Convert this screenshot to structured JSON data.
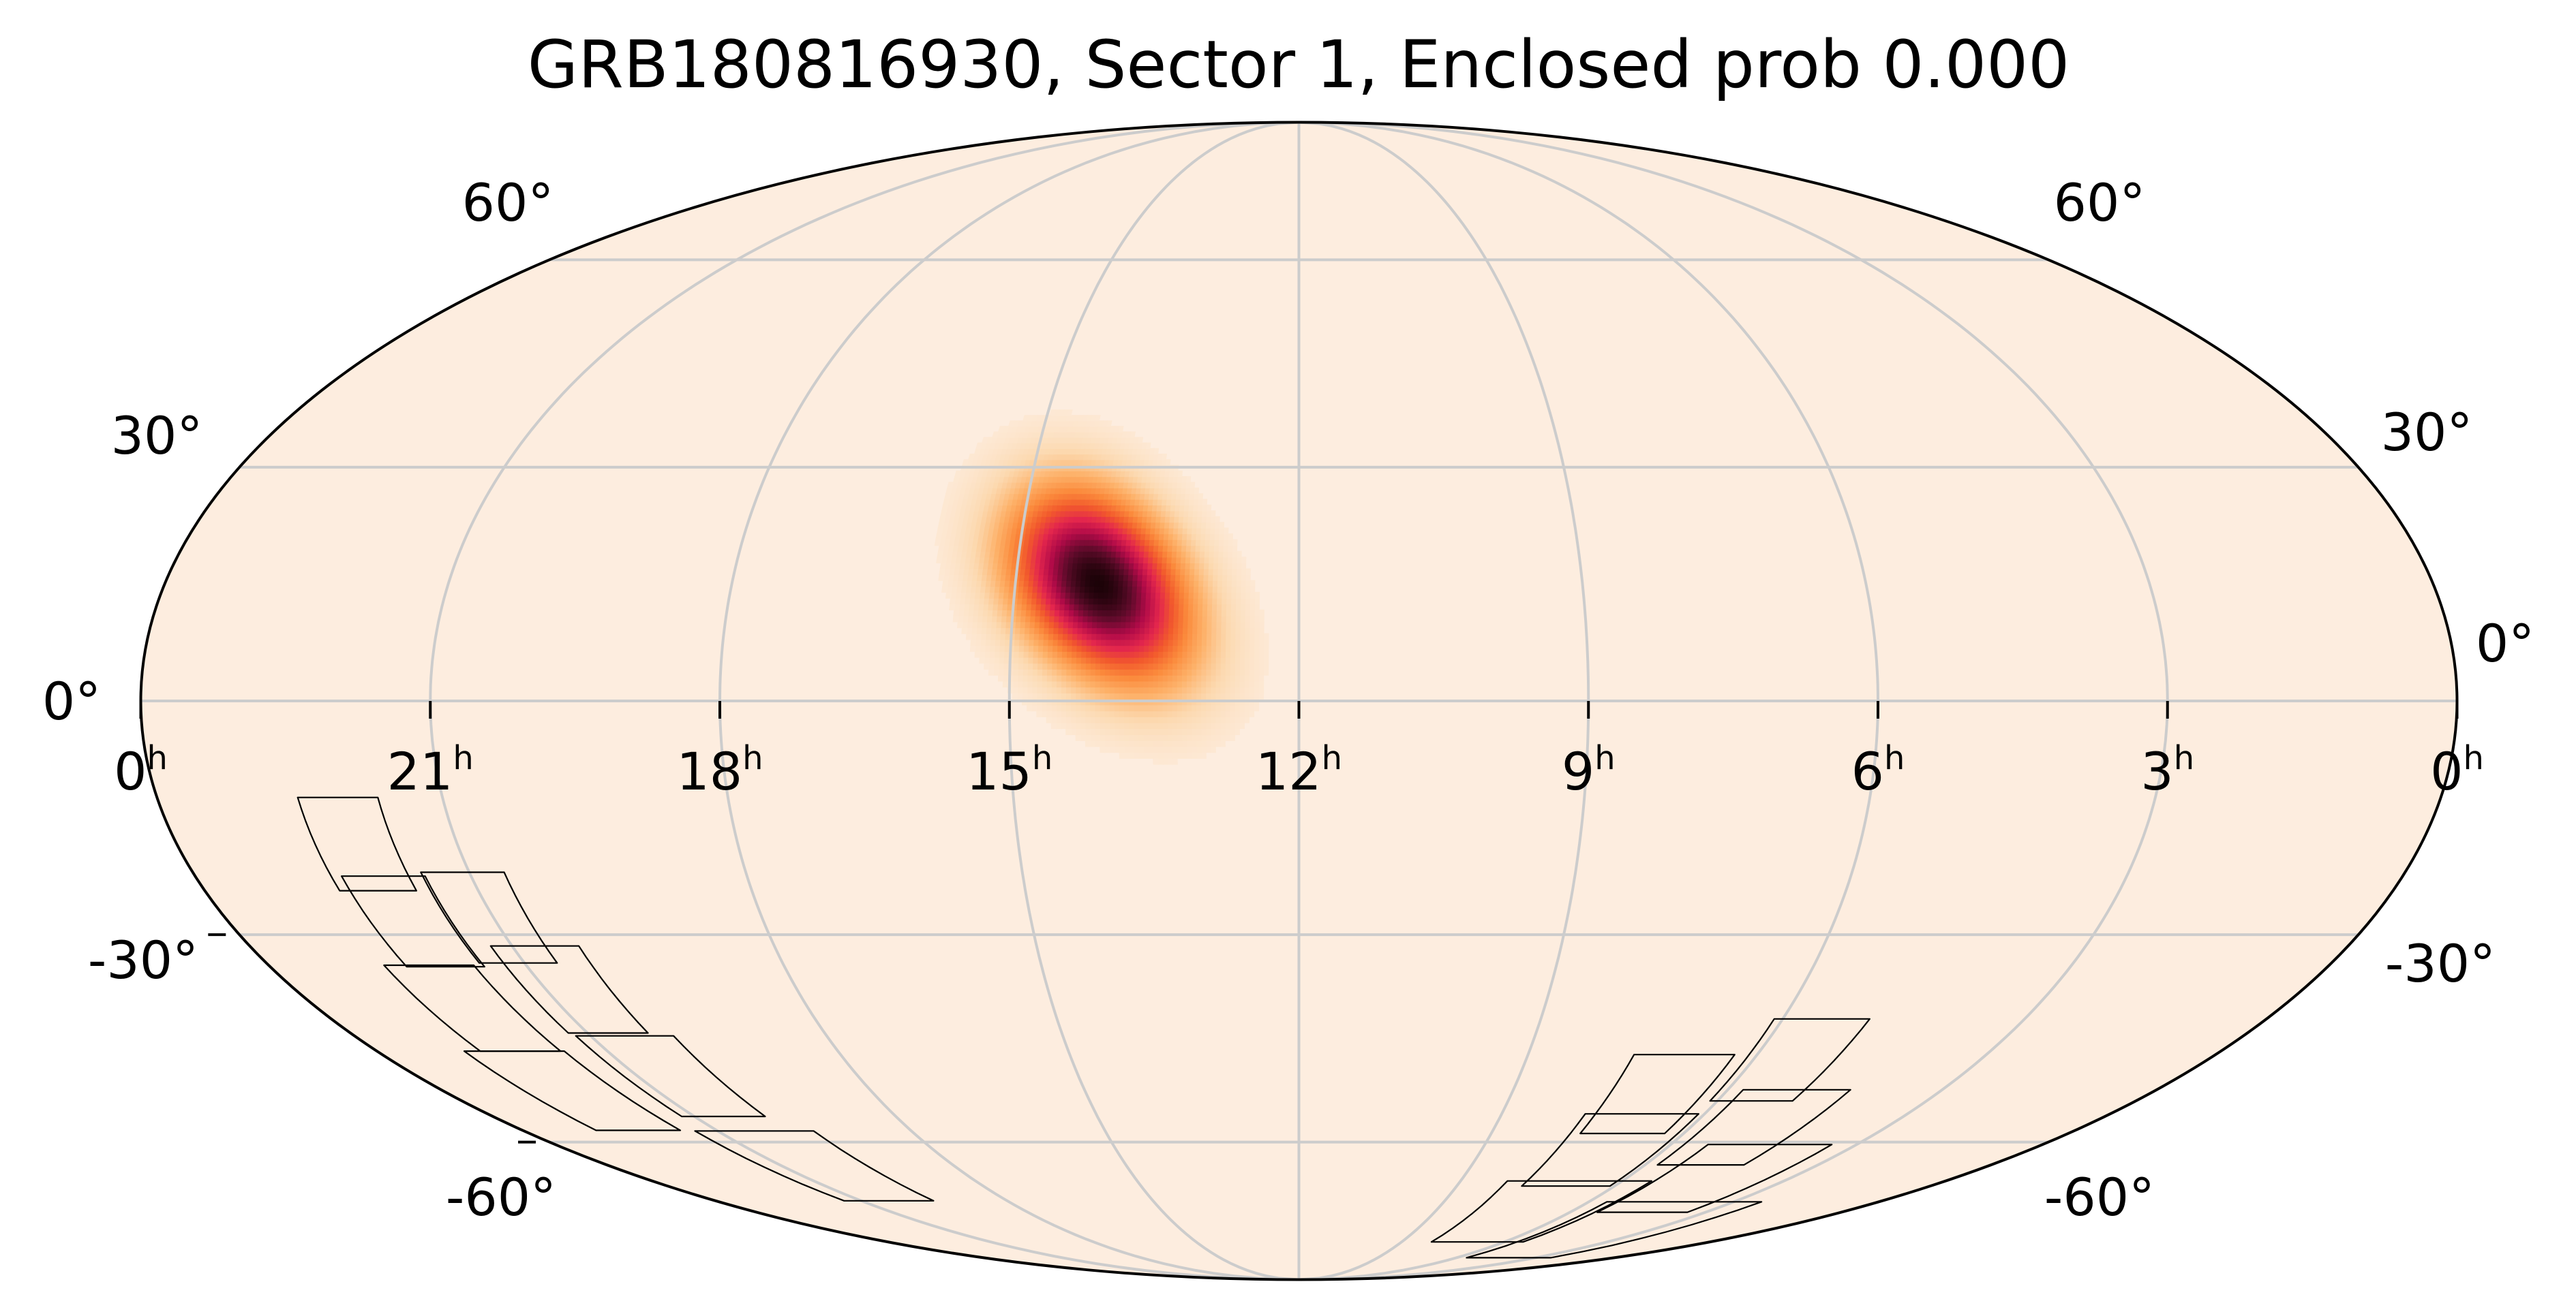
{
  "chart_data": {
    "type": "heatmap",
    "projection": "mollweide",
    "title": "GRB180816930, Sector 1, Enclosed prob 0.000",
    "colormap": "hot_r",
    "colors": {
      "background": "#fdeddf",
      "grid": "#cccccc",
      "outline": "#000000",
      "cmap_stops": [
        "#fdeddf",
        "#fcd9b0",
        "#fdb169",
        "#fb8a3c",
        "#f25a2c",
        "#e3264d",
        "#b10b48",
        "#5e0b2a",
        "#1c0308"
      ]
    },
    "ra_ticks": [
      {
        "h": "0",
        "s": "h",
        "ra": 360
      },
      {
        "h": "21",
        "s": "h",
        "ra": 315
      },
      {
        "h": "18",
        "s": "h",
        "ra": 270
      },
      {
        "h": "15",
        "s": "h",
        "ra": 225
      },
      {
        "h": "12",
        "s": "h",
        "ra": 180
      },
      {
        "h": "9",
        "s": "h",
        "ra": 135
      },
      {
        "h": "6",
        "s": "h",
        "ra": 90
      },
      {
        "h": "3",
        "s": "h",
        "ra": 45
      },
      {
        "h": "0",
        "s": "h",
        "ra": 0
      }
    ],
    "dec_ticks": [
      {
        "label": "60°",
        "dec": 60
      },
      {
        "label": "30°",
        "dec": 30
      },
      {
        "label": "0°",
        "dec": 0
      },
      {
        "label": "-30°",
        "dec": -30
      },
      {
        "label": "-60°",
        "dec": -60
      }
    ],
    "probability_blob": {
      "peak_ra": 211.5,
      "peak_dec": 14.5,
      "sigma_ra_deg": 11,
      "sigma_dec_deg": 7,
      "peak_level": 1.0
    },
    "footprint_patches": [
      {
        "ra": 331.5,
        "dec": -18.2
      },
      {
        "ra": 316.1,
        "dec": -27.8
      },
      {
        "ra": 329.3,
        "dec": -28.3
      },
      {
        "ra": 311.1,
        "dec": -37.5
      },
      {
        "ra": 332.0,
        "dec": -40.1
      },
      {
        "ra": 308.5,
        "dec": -49.9
      },
      {
        "ra": 333.2,
        "dec": -52.1
      },
      {
        "ra": 306.5,
        "dec": -64.2
      },
      {
        "ra": 104.3,
        "dec": -52.6
      },
      {
        "ra": 82.7,
        "dec": -47.5
      },
      {
        "ra": 103.9,
        "dec": -61.5
      },
      {
        "ra": 75.5,
        "dec": -57.8
      },
      {
        "ra": 101.9,
        "dec": -72.6
      },
      {
        "ra": 66.0,
        "dec": -66.4
      },
      {
        "ra": 60.4,
        "dec": -76.4
      }
    ]
  }
}
